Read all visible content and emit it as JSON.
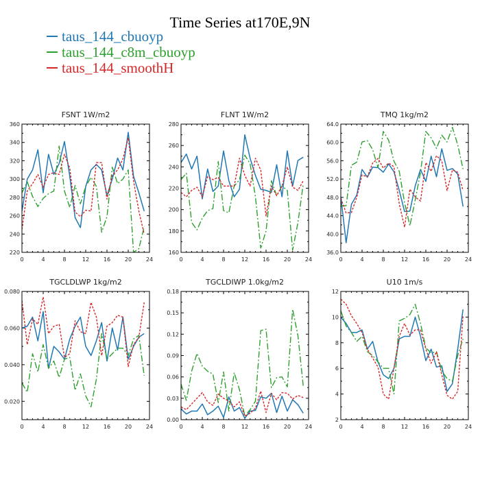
{
  "title": "Time Series at170E,9N",
  "legend": [
    {
      "name": "taus_144_cbuoyp",
      "color": "#1f77b4"
    },
    {
      "name": "taus_144_c8m_cbuoyp",
      "color": "#2ca02c"
    },
    {
      "name": "taus_144_smoothH",
      "color": "#d62728"
    }
  ],
  "chart_data": [
    {
      "type": "line",
      "title": "FSNT   1W/m2",
      "x": [
        0,
        1,
        2,
        3,
        4,
        5,
        6,
        7,
        8,
        9,
        10,
        11,
        12,
        13,
        14,
        15,
        16,
        17,
        18,
        19,
        20,
        21,
        22,
        23
      ],
      "xlim": [
        0,
        24
      ],
      "xticks": [
        0,
        4,
        8,
        12,
        16,
        20,
        24
      ],
      "ylim": [
        220,
        360
      ],
      "yticks": [
        220,
        240,
        260,
        280,
        300,
        320,
        340,
        360
      ],
      "ytick_labels": [
        "220",
        "240",
        "260",
        "280",
        "300",
        "320",
        "340",
        "360"
      ],
      "series": [
        {
          "name": "taus_144_cbuoyp",
          "color": "#1f77b4",
          "dash": "",
          "values": [
            265,
            300,
            310,
            332,
            285,
            327,
            305,
            317,
            341,
            303,
            258,
            247,
            292,
            310,
            316,
            310,
            282,
            300,
            323,
            310,
            351,
            303,
            285,
            265
          ]
        },
        {
          "name": "taus_144_c8m_cbuoyp",
          "color": "#2ca02c",
          "dash": "9,3,2,3",
          "values": [
            285,
            297,
            281,
            270,
            279,
            284,
            287,
            336,
            287,
            269,
            293,
            273,
            292,
            302,
            292,
            242,
            259,
            313,
            295,
            300,
            310,
            220,
            224,
            248
          ]
        },
        {
          "name": "taus_144_smoothH",
          "color": "#d62728",
          "dash": "3,2",
          "values": [
            245,
            287,
            295,
            305,
            291,
            305,
            307,
            305,
            327,
            312,
            264,
            259,
            266,
            265,
            318,
            318,
            278,
            304,
            310,
            322,
            345,
            298,
            265,
            240
          ]
        }
      ]
    },
    {
      "type": "line",
      "title": "FLNT   1W/m2",
      "x": [
        0,
        1,
        2,
        3,
        4,
        5,
        6,
        7,
        8,
        9,
        10,
        11,
        12,
        13,
        14,
        15,
        16,
        17,
        18,
        19,
        20,
        21,
        22,
        23
      ],
      "xlim": [
        0,
        24
      ],
      "xticks": [
        0,
        4,
        8,
        12,
        16,
        20,
        24
      ],
      "ylim": [
        160,
        280
      ],
      "yticks": [
        160,
        180,
        200,
        220,
        240,
        260,
        280
      ],
      "ytick_labels": [
        "160",
        "180",
        "200",
        "220",
        "240",
        "260",
        "280"
      ],
      "series": [
        {
          "name": "taus_144_cbuoyp",
          "color": "#1f77b4",
          "dash": "",
          "values": [
            244,
            252,
            238,
            250,
            210,
            238,
            217,
            222,
            255,
            227,
            212,
            219,
            270,
            248,
            232,
            219,
            218,
            216,
            242,
            212,
            255,
            222,
            246,
            249
          ]
        },
        {
          "name": "taus_144_c8m_cbuoyp",
          "color": "#2ca02c",
          "dash": "9,3,2,3",
          "values": [
            228,
            234,
            188,
            181,
            192,
            199,
            201,
            245,
            199,
            197,
            222,
            228,
            251,
            243,
            212,
            164,
            180,
            227,
            213,
            222,
            218,
            162,
            188,
            224
          ]
        },
        {
          "name": "taus_144_smoothH",
          "color": "#d62728",
          "dash": "3,2",
          "values": [
            216,
            212,
            218,
            221,
            212,
            231,
            228,
            230,
            222,
            222,
            222,
            248,
            232,
            222,
            248,
            237,
            194,
            222,
            213,
            222,
            240,
            221,
            218,
            227
          ]
        }
      ]
    },
    {
      "type": "line",
      "title": "TMQ   1kg/m2",
      "x": [
        0,
        1,
        2,
        3,
        4,
        5,
        6,
        7,
        8,
        9,
        10,
        11,
        12,
        13,
        14,
        15,
        16,
        17,
        18,
        19,
        20,
        21,
        22,
        23
      ],
      "xlim": [
        0,
        24
      ],
      "xticks": [
        0,
        4,
        8,
        12,
        16,
        20,
        24
      ],
      "ylim": [
        36,
        64
      ],
      "yticks": [
        36,
        40,
        44,
        48,
        52,
        56,
        60,
        64
      ],
      "ytick_labels": [
        "36.0",
        "40.0",
        "44.0",
        "48.0",
        "52.0",
        "56.0",
        "60.0",
        "64.0"
      ],
      "series": [
        {
          "name": "taus_144_cbuoyp",
          "color": "#1f77b4",
          "dash": "",
          "values": [
            48.2,
            38.1,
            46.5,
            48.5,
            54.1,
            52.4,
            54.6,
            54.5,
            53.5,
            55.3,
            53.6,
            49.5,
            44.9,
            45.0,
            50.5,
            54.1,
            51.5,
            57.0,
            52.5,
            58.6,
            53.9,
            54.3,
            53.1,
            46.0
          ]
        },
        {
          "name": "taus_144_c8m_cbuoyp",
          "color": "#2ca02c",
          "dash": "9,3,2,3",
          "values": [
            46.1,
            46.2,
            55.0,
            55.7,
            60.1,
            60.4,
            58.4,
            54.5,
            62.4,
            60.5,
            55.9,
            53.7,
            46.8,
            41.8,
            47.4,
            53.5,
            62.4,
            61.0,
            58.7,
            61.6,
            60.1,
            63.3,
            59.5,
            54.2
          ]
        },
        {
          "name": "taus_144_smoothH",
          "color": "#d62728",
          "dash": "3,2",
          "values": [
            47.8,
            44.6,
            44.7,
            48.0,
            52.9,
            52.5,
            55.5,
            56.5,
            54.4,
            55.5,
            54.7,
            46.6,
            41.5,
            49.8,
            48.1,
            47.2,
            55.6,
            53.7,
            57.1,
            56.0,
            49.5,
            54.0,
            53.5,
            49.5
          ]
        }
      ]
    },
    {
      "type": "line",
      "title": "TGCLDLWP   1kg/m2",
      "x": [
        0,
        1,
        2,
        3,
        4,
        5,
        6,
        7,
        8,
        9,
        10,
        11,
        12,
        13,
        14,
        15,
        16,
        17,
        18,
        19,
        20,
        21,
        22,
        23
      ],
      "xlim": [
        0,
        24
      ],
      "xticks": [
        0,
        4,
        8,
        12,
        16,
        20,
        24
      ],
      "ylim": [
        0.01,
        0.08
      ],
      "yticks": [
        0.02,
        0.04,
        0.06,
        0.08
      ],
      "ytick_labels": [
        "0.020",
        "0.040",
        "0.060",
        "0.080"
      ],
      "series": [
        {
          "name": "taus_144_cbuoyp",
          "color": "#1f77b4",
          "dash": "",
          "values": [
            0.06,
            0.061,
            0.066,
            0.053,
            0.069,
            0.038,
            0.05,
            0.047,
            0.043,
            0.054,
            0.061,
            0.066,
            0.05,
            0.045,
            0.053,
            0.063,
            0.042,
            0.06,
            0.048,
            0.066,
            0.043,
            0.05,
            0.055,
            0.057
          ]
        },
        {
          "name": "taus_144_c8m_cbuoyp",
          "color": "#2ca02c",
          "dash": "9,3,2,3",
          "values": [
            0.03,
            0.025,
            0.046,
            0.036,
            0.051,
            0.038,
            0.042,
            0.033,
            0.043,
            0.044,
            0.026,
            0.035,
            0.023,
            0.017,
            0.032,
            0.057,
            0.043,
            0.046,
            0.049,
            0.049,
            0.045,
            0.054,
            0.056,
            0.034
          ]
        },
        {
          "name": "taus_144_smoothH",
          "color": "#d62728",
          "dash": "3,2",
          "values": [
            0.075,
            0.051,
            0.065,
            0.062,
            0.077,
            0.057,
            0.061,
            0.062,
            0.044,
            0.046,
            0.064,
            0.058,
            0.057,
            0.074,
            0.066,
            0.045,
            0.061,
            0.063,
            0.067,
            0.066,
            0.039,
            0.051,
            0.055,
            0.074
          ]
        }
      ]
    },
    {
      "type": "line",
      "title": "TGCLDIWP   1.0kg/m2",
      "x": [
        0,
        1,
        2,
        3,
        4,
        5,
        6,
        7,
        8,
        9,
        10,
        11,
        12,
        13,
        14,
        15,
        16,
        17,
        18,
        19,
        20,
        21,
        22,
        23
      ],
      "xlim": [
        0,
        24
      ],
      "xticks": [
        0,
        4,
        8,
        12,
        16,
        20,
        24
      ],
      "ylim": [
        0,
        0.18
      ],
      "yticks": [
        0,
        0.03,
        0.06,
        0.09,
        0.12,
        0.15,
        0.18
      ],
      "ytick_labels": [
        "0.00",
        "0.03",
        "0.06",
        "0.09",
        "0.12",
        "0.15",
        "0.18"
      ],
      "series": [
        {
          "name": "taus_144_cbuoyp",
          "color": "#1f77b4",
          "dash": "",
          "values": [
            0.015,
            0.008,
            0.012,
            0.012,
            0.022,
            0.007,
            0.012,
            0.019,
            0.003,
            0.032,
            0.012,
            0.017,
            0.002,
            0.012,
            0.013,
            0.032,
            0.03,
            0.037,
            0.01,
            0.033,
            0.012,
            0.028,
            0.021,
            0.009
          ]
        },
        {
          "name": "taus_144_c8m_cbuoyp",
          "color": "#2ca02c",
          "dash": "9,3,2,3",
          "values": [
            0.05,
            0.027,
            0.068,
            0.093,
            0.075,
            0.068,
            0.064,
            0.024,
            0.067,
            0.012,
            0.066,
            0.042,
            0.005,
            0.014,
            0.026,
            0.125,
            0.127,
            0.045,
            0.059,
            0.06,
            0.046,
            0.155,
            0.118,
            0.047
          ]
        },
        {
          "name": "taus_144_smoothH",
          "color": "#d62728",
          "dash": "3,2",
          "values": [
            0.018,
            0.014,
            0.022,
            0.03,
            0.038,
            0.025,
            0.02,
            0.036,
            0.03,
            0.026,
            0.018,
            0.025,
            0.005,
            0.009,
            0.016,
            0.04,
            0.01,
            0.037,
            0.028,
            0.038,
            0.037,
            0.029,
            0.034,
            0.031
          ]
        }
      ]
    },
    {
      "type": "line",
      "title": "U10   1m/s",
      "x": [
        0,
        1,
        2,
        3,
        4,
        5,
        6,
        7,
        8,
        9,
        10,
        11,
        12,
        13,
        14,
        15,
        16,
        17,
        18,
        19,
        20,
        21,
        22,
        23
      ],
      "xlim": [
        0,
        24
      ],
      "xticks": [
        0,
        4,
        8,
        12,
        16,
        20,
        24
      ],
      "ylim": [
        2,
        12
      ],
      "yticks": [
        2,
        4,
        6,
        8,
        10,
        12
      ],
      "ytick_labels": [
        "2",
        "4",
        "6",
        "8",
        "10",
        "12"
      ],
      "series": [
        {
          "name": "taus_144_cbuoyp",
          "color": "#1f77b4",
          "dash": "",
          "values": [
            10.0,
            9.5,
            8.8,
            8.8,
            9.0,
            7.5,
            8.1,
            6.5,
            5.5,
            5.2,
            6.0,
            8.3,
            8.5,
            8.5,
            10.0,
            8.5,
            6.6,
            7.5,
            6.1,
            6.2,
            4.2,
            4.8,
            7.5,
            10.6
          ]
        },
        {
          "name": "taus_144_c8m_cbuoyp",
          "color": "#2ca02c",
          "dash": "9,3,2,3",
          "values": [
            10.5,
            9.3,
            8.8,
            8.1,
            8.5,
            7.3,
            7.0,
            6.5,
            6.0,
            6.0,
            4.0,
            9.7,
            9.9,
            10.2,
            11.0,
            9.5,
            7.6,
            7.2,
            7.3,
            5.8,
            5.2,
            5.0,
            7.0,
            8.3
          ]
        },
        {
          "name": "taus_144_smoothH",
          "color": "#d62728",
          "dash": "3,2",
          "values": [
            11.4,
            11.0,
            10.1,
            9.5,
            8.8,
            7.5,
            6.8,
            6.1,
            4.0,
            3.6,
            6.0,
            8.5,
            9.5,
            8.6,
            9.0,
            9.0,
            7.5,
            6.4,
            7.3,
            5.5,
            3.9,
            3.6,
            4.2,
            10.1
          ]
        }
      ]
    }
  ]
}
